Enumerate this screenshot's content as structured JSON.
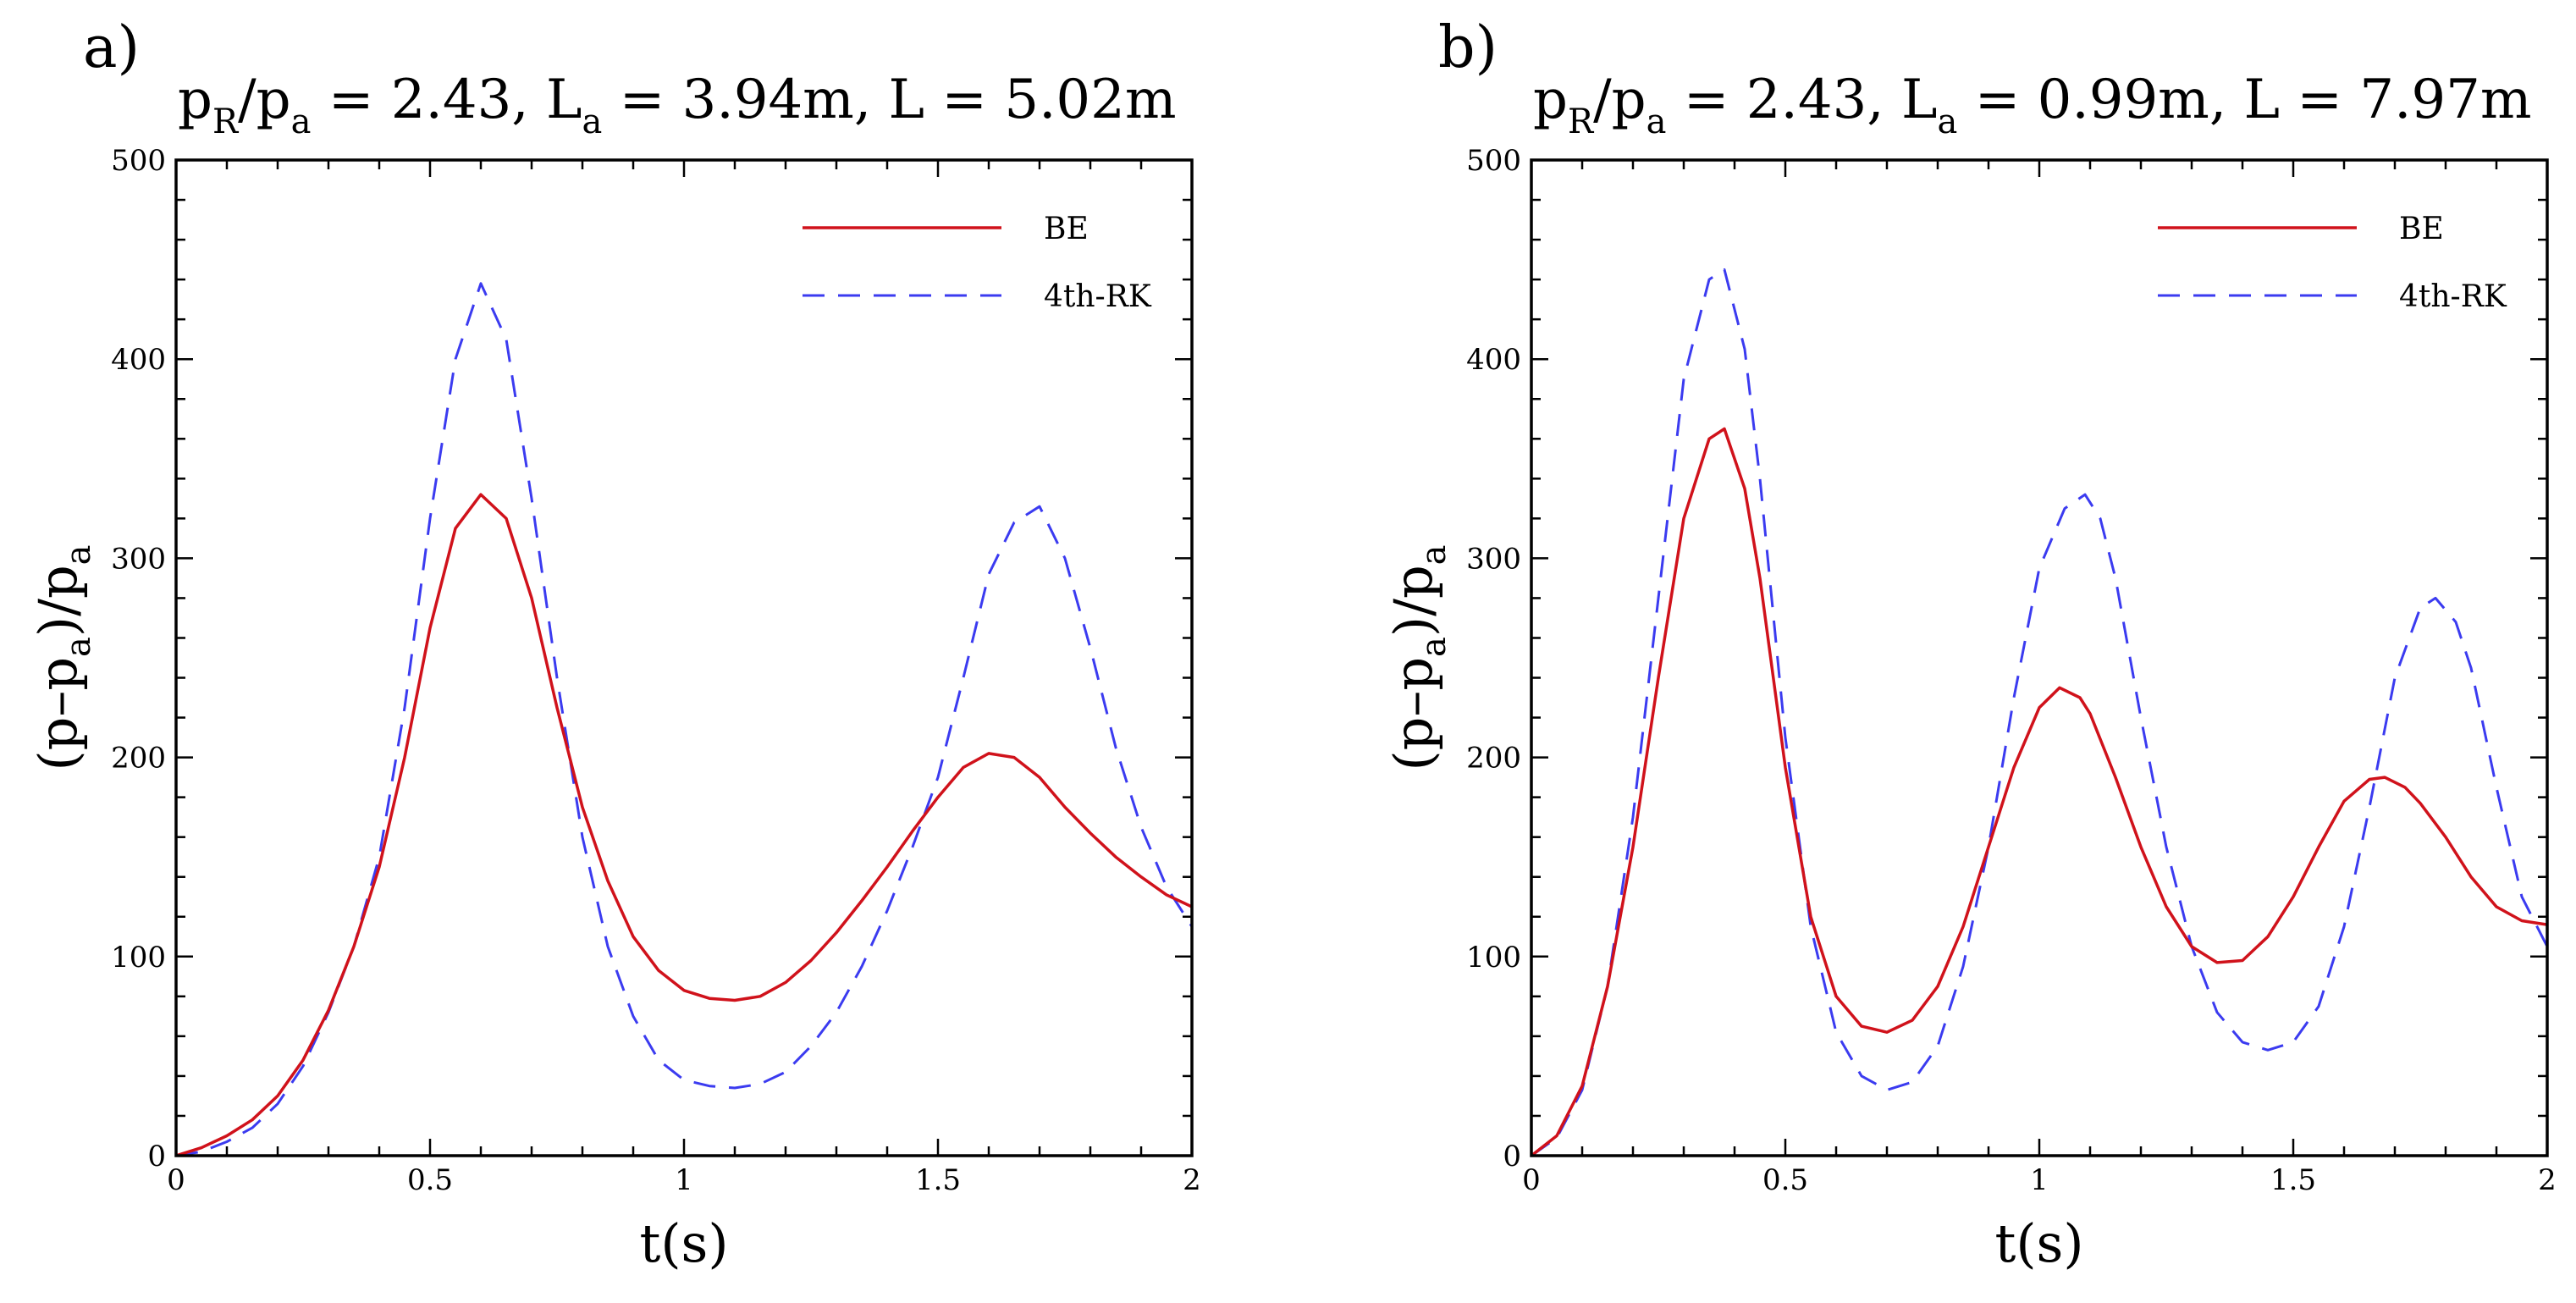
{
  "chart_data": [
    {
      "type": "line",
      "panel_label": "a)",
      "title_parts": [
        "p",
        "R",
        "/p",
        "a",
        " = 2.43, L",
        "a",
        " = 3.94m, L = 5.02m"
      ],
      "xlabel": "t(s)",
      "ylabel_parts": [
        "(p–p",
        "a",
        ")/p",
        "a"
      ],
      "xlim": [
        0,
        2
      ],
      "ylim": [
        0,
        500
      ],
      "xticks": [
        0,
        0.5,
        1,
        1.5,
        2
      ],
      "xtick_labels": [
        "0",
        "0.5",
        "1",
        "1.5",
        "2"
      ],
      "yticks": [
        0,
        100,
        200,
        300,
        400,
        500
      ],
      "ytick_labels": [
        "0",
        "100",
        "200",
        "300",
        "400",
        "500"
      ],
      "grid": false,
      "legend_position": "top-right",
      "series": [
        {
          "name": "BE",
          "color": "#d0121b",
          "style": "solid",
          "x": [
            0,
            0.05,
            0.1,
            0.15,
            0.2,
            0.25,
            0.3,
            0.35,
            0.4,
            0.45,
            0.5,
            0.55,
            0.6,
            0.65,
            0.7,
            0.75,
            0.8,
            0.85,
            0.9,
            0.95,
            1.0,
            1.05,
            1.1,
            1.15,
            1.2,
            1.25,
            1.3,
            1.35,
            1.4,
            1.45,
            1.5,
            1.55,
            1.6,
            1.65,
            1.7,
            1.75,
            1.8,
            1.85,
            1.9,
            1.95,
            2.0
          ],
          "y": [
            0,
            4,
            10,
            18,
            30,
            48,
            73,
            105,
            145,
            200,
            265,
            315,
            332,
            320,
            280,
            225,
            175,
            138,
            110,
            93,
            83,
            79,
            78,
            80,
            87,
            98,
            112,
            128,
            145,
            163,
            180,
            195,
            202,
            200,
            190,
            175,
            162,
            150,
            140,
            131,
            125
          ]
        },
        {
          "name": "4th-RK",
          "color": "#3b3bf0",
          "style": "dashed",
          "x": [
            0,
            0.05,
            0.1,
            0.15,
            0.2,
            0.25,
            0.3,
            0.35,
            0.4,
            0.45,
            0.5,
            0.55,
            0.6,
            0.65,
            0.7,
            0.75,
            0.8,
            0.85,
            0.9,
            0.95,
            1.0,
            1.05,
            1.1,
            1.15,
            1.2,
            1.25,
            1.3,
            1.35,
            1.4,
            1.45,
            1.5,
            1.55,
            1.6,
            1.65,
            1.7,
            1.75,
            1.8,
            1.85,
            1.9,
            1.95,
            2.0
          ],
          "y": [
            0,
            2,
            7,
            14,
            26,
            45,
            72,
            105,
            150,
            225,
            320,
            400,
            438,
            410,
            330,
            240,
            160,
            105,
            70,
            48,
            38,
            35,
            34,
            36,
            42,
            55,
            72,
            95,
            123,
            155,
            190,
            240,
            292,
            318,
            326,
            300,
            255,
            205,
            165,
            135,
            115
          ]
        }
      ]
    },
    {
      "type": "line",
      "panel_label": "b)",
      "title_parts": [
        "p",
        "R",
        "/p",
        "a",
        " = 2.43, L",
        "a",
        " = 0.99m, L = 7.97m"
      ],
      "xlabel": "t(s)",
      "ylabel_parts": [
        "(p–p",
        "a",
        ")/p",
        "a"
      ],
      "xlim": [
        0,
        2
      ],
      "ylim": [
        0,
        500
      ],
      "xticks": [
        0,
        0.5,
        1,
        1.5,
        2
      ],
      "xtick_labels": [
        "0",
        "0.5",
        "1",
        "1.5",
        "2"
      ],
      "yticks": [
        0,
        100,
        200,
        300,
        400,
        500
      ],
      "ytick_labels": [
        "0",
        "100",
        "200",
        "300",
        "400",
        "500"
      ],
      "grid": false,
      "legend_position": "top-right",
      "series": [
        {
          "name": "BE",
          "color": "#d0121b",
          "style": "solid",
          "x": [
            0,
            0.05,
            0.1,
            0.15,
            0.2,
            0.25,
            0.3,
            0.35,
            0.38,
            0.42,
            0.45,
            0.5,
            0.55,
            0.6,
            0.65,
            0.7,
            0.75,
            0.8,
            0.85,
            0.9,
            0.95,
            1.0,
            1.04,
            1.08,
            1.1,
            1.15,
            1.2,
            1.25,
            1.3,
            1.35,
            1.4,
            1.45,
            1.5,
            1.55,
            1.6,
            1.65,
            1.68,
            1.72,
            1.75,
            1.8,
            1.85,
            1.9,
            1.95,
            2.0
          ],
          "y": [
            0,
            10,
            35,
            85,
            155,
            240,
            320,
            360,
            365,
            335,
            290,
            195,
            120,
            80,
            65,
            62,
            68,
            85,
            115,
            155,
            195,
            225,
            235,
            230,
            222,
            190,
            155,
            125,
            105,
            97,
            98,
            110,
            130,
            155,
            178,
            189,
            190,
            185,
            177,
            160,
            140,
            125,
            118,
            116
          ]
        },
        {
          "name": "4th-RK",
          "color": "#3b3bf0",
          "style": "dashed",
          "x": [
            0,
            0.05,
            0.1,
            0.15,
            0.2,
            0.25,
            0.3,
            0.35,
            0.38,
            0.42,
            0.45,
            0.5,
            0.55,
            0.6,
            0.65,
            0.7,
            0.75,
            0.8,
            0.85,
            0.9,
            0.95,
            1.0,
            1.05,
            1.09,
            1.12,
            1.15,
            1.2,
            1.25,
            1.3,
            1.35,
            1.4,
            1.45,
            1.5,
            1.55,
            1.6,
            1.65,
            1.7,
            1.75,
            1.78,
            1.82,
            1.85,
            1.9,
            1.95,
            2.0
          ],
          "y": [
            0,
            9,
            33,
            85,
            170,
            280,
            390,
            440,
            445,
            405,
            340,
            210,
            115,
            62,
            40,
            33,
            37,
            55,
            95,
            155,
            230,
            295,
            325,
            332,
            320,
            290,
            220,
            155,
            105,
            72,
            57,
            53,
            57,
            75,
            115,
            175,
            240,
            275,
            280,
            268,
            245,
            185,
            130,
            105
          ]
        }
      ]
    }
  ]
}
